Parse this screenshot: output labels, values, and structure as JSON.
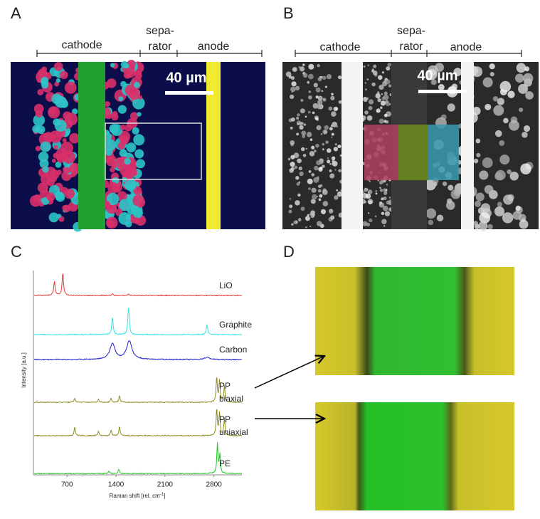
{
  "panels": {
    "a": {
      "label": "A",
      "cathode": "cathode",
      "separator": [
        "sepa-",
        "rator"
      ],
      "anode": "anode",
      "scale_bar": "40 µm"
    },
    "b": {
      "label": "B",
      "cathode": "cathode",
      "separator": [
        "sepa-",
        "rator"
      ],
      "anode": "anode",
      "scale_bar": "40 µm"
    },
    "c": {
      "label": "C",
      "chart": {
        "type": "line",
        "x_label": "Raman shift [rel. cm",
        "x_label_sup": "-1",
        "x_label_end": "]",
        "y_label": "Intensity [a.u.]",
        "xlim": [
          220,
          3200
        ],
        "xticks": [
          700,
          1400,
          2100,
          2800
        ],
        "series": [
          {
            "name": "LiO",
            "color": "#e83a3a",
            "width": 12,
            "peaks": [
              {
                "x": 520,
                "height": 20
              },
              {
                "x": 640,
                "height": 32
              },
              {
                "x": 1350,
                "height": 2
              },
              {
                "x": 1580,
                "height": 2
              }
            ]
          },
          {
            "name": "Graphite",
            "color": "#33e6e6",
            "width": 12,
            "peaks": [
              {
                "x": 1350,
                "height": 24
              },
              {
                "x": 1580,
                "height": 40
              },
              {
                "x": 2700,
                "height": 14
              }
            ]
          },
          {
            "name": "Carbon",
            "color": "#1f1fd0",
            "width": 45,
            "peaks": [
              {
                "x": 1350,
                "height": 22
              },
              {
                "x": 1590,
                "height": 26
              },
              {
                "x": 2700,
                "height": 3
              }
            ]
          },
          {
            "name": "PP biaxial",
            "color": "#8c8c1e",
            "width": 10,
            "peaks": [
              {
                "x": 810,
                "height": 6
              },
              {
                "x": 1150,
                "height": 4
              },
              {
                "x": 1330,
                "height": 6
              },
              {
                "x": 1450,
                "height": 9
              },
              {
                "x": 2840,
                "height": 36
              },
              {
                "x": 2880,
                "height": 30
              },
              {
                "x": 2950,
                "height": 22
              }
            ]
          },
          {
            "name": "PP uniaxial",
            "color": "#8c8c1e",
            "width": 10,
            "peaks": [
              {
                "x": 810,
                "height": 12
              },
              {
                "x": 1150,
                "height": 6
              },
              {
                "x": 1330,
                "height": 8
              },
              {
                "x": 1450,
                "height": 13
              },
              {
                "x": 2840,
                "height": 38
              },
              {
                "x": 2880,
                "height": 32
              },
              {
                "x": 2950,
                "height": 24
              }
            ]
          },
          {
            "name": "PE",
            "color": "#22c422",
            "width": 10,
            "peaks": [
              {
                "x": 1300,
                "height": 3
              },
              {
                "x": 1440,
                "height": 6
              },
              {
                "x": 2850,
                "height": 42
              },
              {
                "x": 2885,
                "height": 26
              }
            ]
          }
        ]
      }
    },
    "d": {
      "label": "D"
    }
  }
}
